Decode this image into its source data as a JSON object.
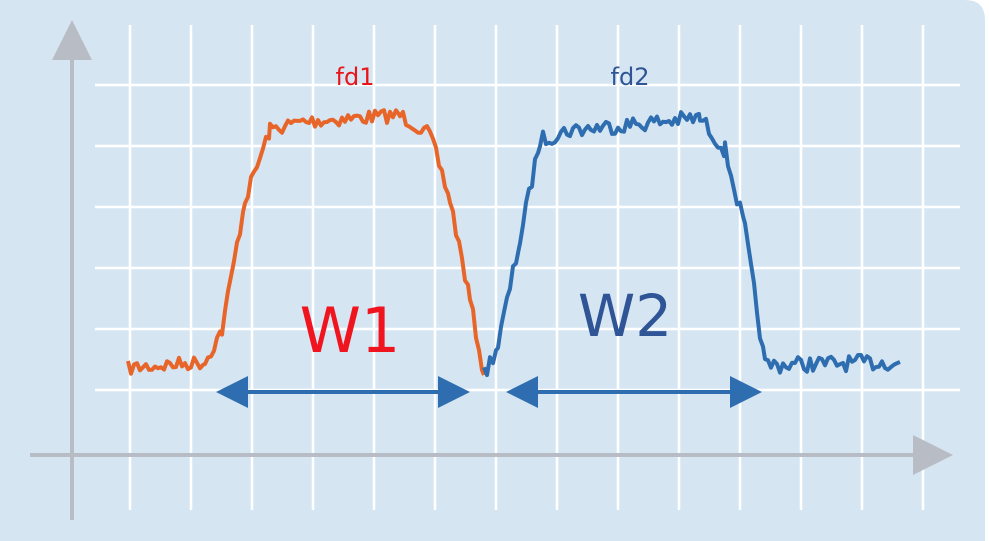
{
  "signals": [
    {
      "label": "fd1"
    },
    {
      "label": "fd2"
    }
  ],
  "widths": [
    {
      "label": "W1"
    },
    {
      "label": "W2"
    }
  ]
}
